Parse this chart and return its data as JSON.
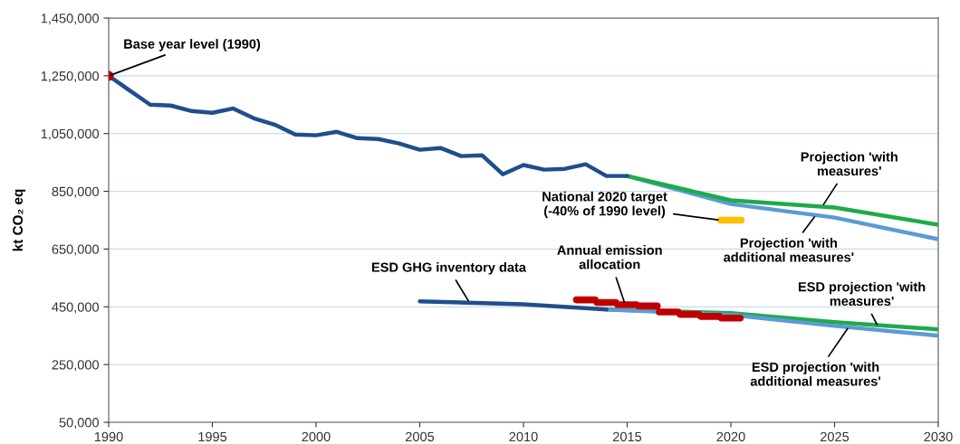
{
  "chart_data": {
    "type": "line",
    "ylabel": "kt CO₂ eq",
    "xlim": [
      1990,
      2030
    ],
    "xticks": [
      1990,
      1995,
      2000,
      2005,
      2010,
      2015,
      2020,
      2025,
      2030
    ],
    "ylim": [
      50000,
      1450000
    ],
    "yticks": [
      {
        "value": 50000,
        "label": "50,000"
      },
      {
        "value": 250000,
        "label": "250,000"
      },
      {
        "value": 450000,
        "label": "450,000"
      },
      {
        "value": 650000,
        "label": "650,000"
      },
      {
        "value": 850000,
        "label": "850,000"
      },
      {
        "value": 1050000,
        "label": "1,050,000"
      },
      {
        "value": 1250000,
        "label": "1,250,000"
      },
      {
        "value": 1450000,
        "label": "1,450,000"
      }
    ],
    "grid": "y",
    "marker": "none",
    "line_style": "solid",
    "series": [
      {
        "color": "#5b9bd5",
        "x": [
          2015,
          2020,
          2025,
          2030
        ],
        "values": [
          903000,
          806000,
          759000,
          684000
        ]
      },
      {
        "color": "#1faa4a",
        "x": [
          2015,
          2020,
          2025,
          2030
        ],
        "values": [
          903000,
          819000,
          794000,
          734000
        ]
      },
      {
        "color": "#1f4e8c",
        "x": [
          1990,
          1991,
          1992,
          1993,
          1994,
          1995,
          1996,
          1997,
          1998,
          1999,
          2000,
          2001,
          2002,
          2003,
          2004,
          2005,
          2006,
          2007,
          2008,
          2009,
          2010,
          2011,
          2012,
          2013,
          2014,
          2015
        ],
        "values": [
          1250000,
          1200000,
          1150000,
          1147000,
          1128000,
          1122000,
          1137000,
          1103000,
          1081000,
          1047000,
          1044000,
          1056000,
          1034000,
          1031000,
          1016000,
          994000,
          1000000,
          972000,
          975000,
          909000,
          941000,
          925000,
          928000,
          944000,
          903000,
          903000
        ]
      },
      {
        "color": "#1faa4a",
        "x": [
          2014,
          2020,
          2025,
          2030
        ],
        "values": [
          441000,
          428000,
          397000,
          372000
        ]
      },
      {
        "color": "#5b9bd5",
        "x": [
          2014,
          2020,
          2025,
          2030
        ],
        "values": [
          441000,
          422000,
          384000,
          350000
        ]
      },
      {
        "color": "#1f4e8c",
        "x": [
          2005,
          2010,
          2014
        ],
        "values": [
          469000,
          459000,
          441000
        ]
      },
      {
        "color": "#c00000",
        "x": [
          2012.55,
          2013.45,
          2013.5,
          2013.55,
          2014.45,
          2014.5,
          2014.55,
          2015.45,
          2015.5,
          2015.55,
          2016.45,
          2016.5,
          2016.55,
          2017.45,
          2017.5,
          2017.55,
          2018.45,
          2018.5,
          2018.55,
          2019.45,
          2019.5,
          2019.55,
          2020.45
        ],
        "values": [
          474000,
          474000,
          null,
          465000,
          465000,
          null,
          457000,
          457000,
          null,
          453000,
          453000,
          null,
          432000,
          432000,
          null,
          424000,
          424000,
          null,
          417000,
          417000,
          null,
          411000,
          411000
        ]
      },
      {
        "color": "#ffc000",
        "x": [
          2019.5,
          2020.5
        ],
        "values": [
          750000,
          750000
        ]
      },
      {
        "type": "scatter",
        "marker": "circle",
        "color": "#c00000",
        "x": [
          1990
        ],
        "values": [
          1250000
        ]
      }
    ],
    "annotations": [
      {
        "text": "Base year level (1990)",
        "x": 1990,
        "y": 1250000
      },
      {
        "text": "National 2020 target\n(-40% of 1990 level)",
        "x": 2019.5,
        "y": 750000
      },
      {
        "text": "Projection 'with\nmeasures'",
        "x": 2024.4,
        "y": 797000
      },
      {
        "text": "Projection 'with\nadditional measures'",
        "x": 2024.1,
        "y": 768000
      },
      {
        "text": "ESD GHG inventory data",
        "x": 2007.4,
        "y": 464000
      },
      {
        "text": "Annual emission\nallocation",
        "x": 2014.9,
        "y": 458000
      },
      {
        "text": "ESD projection 'with\nmeasures'",
        "x": 2027.1,
        "y": 381000
      },
      {
        "text": "ESD projection 'with\nadditional measures'",
        "x": 2025.7,
        "y": 382000
      }
    ]
  }
}
